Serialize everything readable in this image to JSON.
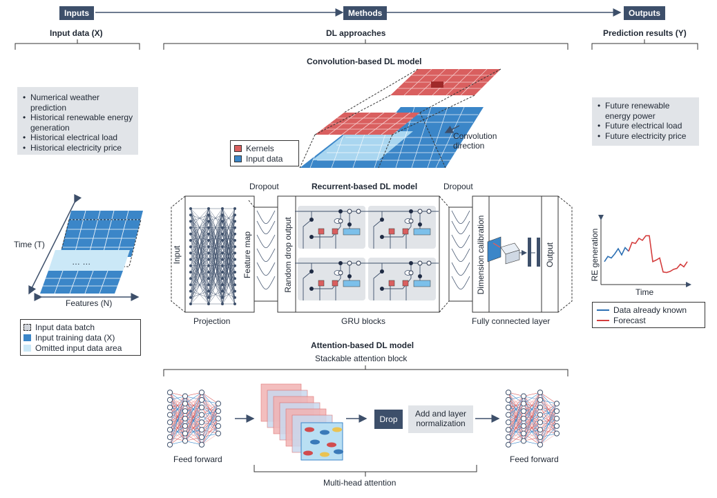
{
  "header": {
    "inputs": "Inputs",
    "methods": "Methods",
    "outputs": "Outputs"
  },
  "inputs": {
    "title": "Input data (X)",
    "bullets": [
      "Numerical weather prediction",
      "Historical renewable energy generation",
      "Historical electrical load",
      "Historical electricity price"
    ],
    "time_axis": "Time (T)",
    "features_axis": "Features (N)",
    "ellipsis": "…  …",
    "legend": {
      "batch": "Input data batch",
      "training": "Input training data (X)",
      "omitted": "Omitted input data area"
    }
  },
  "methods": {
    "title": "DL approaches",
    "conv": {
      "title": "Convolution-based DL model",
      "legend_kernels": "Kernels",
      "legend_input": "Input data",
      "direction": "Convolution direction"
    },
    "recurrent": {
      "title": "Recurrent-based DL model",
      "dropout_left": "Dropout",
      "dropout_right": "Dropout",
      "input": "Input",
      "feature_map": "Feature map",
      "random_drop": "Random drop output",
      "dimension": "Dimension calibration",
      "output": "Output",
      "projection": "Projection",
      "gru": "GRU blocks",
      "fcl": "Fully connected layer"
    },
    "attention": {
      "title": "Attention-based DL model",
      "subtitle": "Stackable attention block",
      "feed_forward_left": "Feed forward",
      "feed_forward_right": "Feed forward",
      "drop": "Drop",
      "addnorm": "Add and layer normalization",
      "mha": "Multi-head attention"
    }
  },
  "outputs": {
    "title": "Prediction results (Y)",
    "bullets": [
      "Future renewable energy power",
      "Future electrical load",
      "Future electricity price"
    ],
    "chart": {
      "ylabel": "RE generation",
      "xlabel": "Time"
    },
    "legend": {
      "known": "Data already known",
      "forecast": "Forecast"
    }
  },
  "colors": {
    "navy": "#3d4f6a",
    "blue": "#3b86c8",
    "light_blue": "#b9dff3",
    "red": "#d95f5f",
    "light_red": "#f2b3b3",
    "gray_box": "#e1e4e8",
    "series_known": "#2c6fb3",
    "series_forecast": "#d43c3c"
  },
  "chart_data": {
    "type": "line",
    "xlabel": "Time",
    "ylabel": "RE generation",
    "series": [
      {
        "name": "Data already known",
        "x": [
          0,
          1,
          2,
          3,
          4,
          5,
          6,
          7
        ],
        "values": [
          0.35,
          0.45,
          0.42,
          0.5,
          0.6,
          0.48,
          0.62,
          0.55
        ]
      },
      {
        "name": "Forecast",
        "x": [
          7,
          8,
          9,
          10,
          11,
          12,
          13,
          14,
          15,
          16,
          17,
          18,
          19,
          20,
          21,
          22,
          23,
          24
        ],
        "values": [
          0.55,
          0.72,
          0.7,
          0.8,
          0.76,
          0.85,
          0.85,
          0.35,
          0.38,
          0.42,
          0.15,
          0.14,
          0.16,
          0.2,
          0.22,
          0.3,
          0.25,
          0.35
        ]
      }
    ]
  }
}
